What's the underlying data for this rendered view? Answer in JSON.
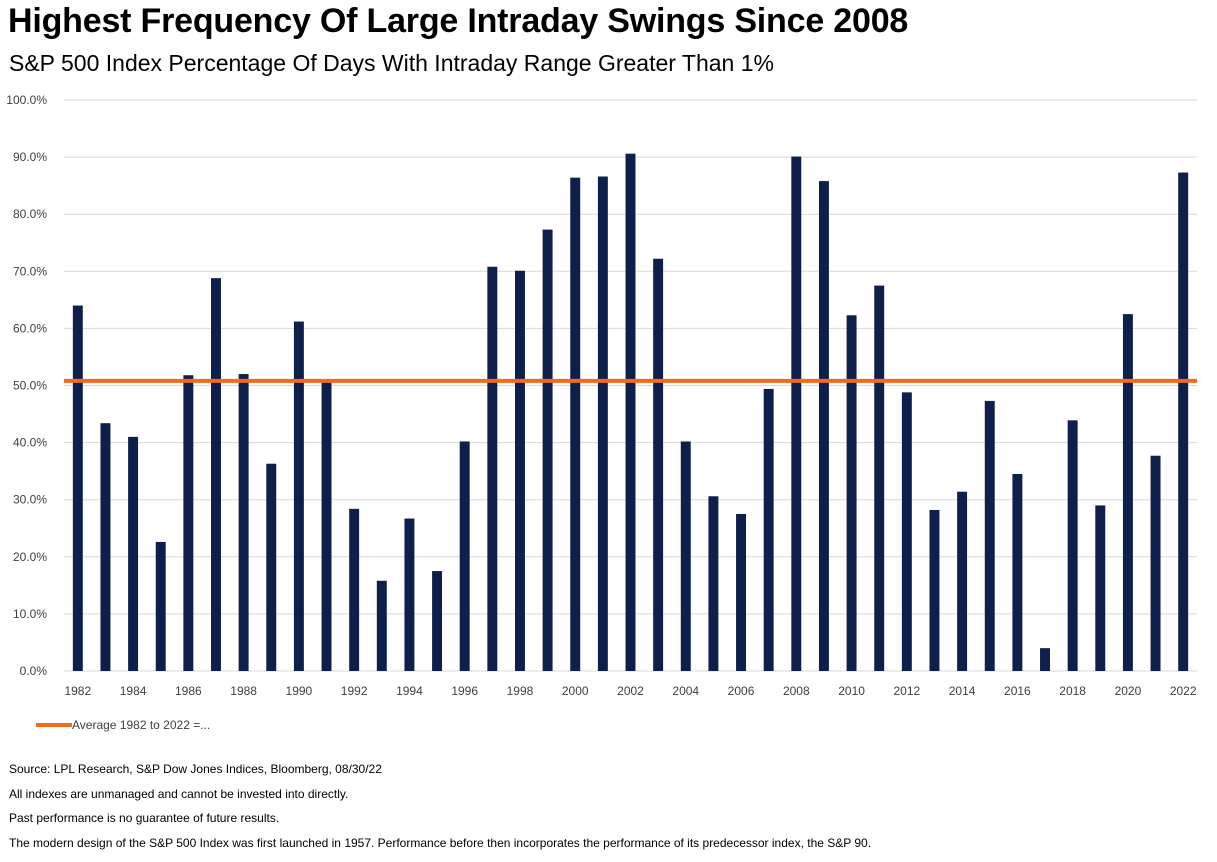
{
  "chart_data": {
    "type": "bar",
    "title": "Highest Frequency Of Large Intraday Swings Since 2008",
    "subtitle": "S&P 500 Index Percentage Of Days With Intraday Range Greater Than 1%",
    "categories": [
      "1982",
      "1983",
      "1984",
      "1985",
      "1986",
      "1987",
      "1988",
      "1989",
      "1990",
      "1991",
      "1992",
      "1993",
      "1994",
      "1995",
      "1996",
      "1997",
      "1998",
      "1999",
      "2000",
      "2001",
      "2002",
      "2003",
      "2004",
      "2005",
      "2006",
      "2007",
      "2008",
      "2009",
      "2010",
      "2011",
      "2012",
      "2013",
      "2014",
      "2015",
      "2016",
      "2017",
      "2018",
      "2019",
      "2020",
      "2021",
      "2022"
    ],
    "values": [
      64.0,
      43.4,
      41.0,
      22.6,
      51.8,
      68.8,
      52.0,
      36.3,
      61.2,
      50.6,
      28.4,
      15.8,
      26.7,
      17.5,
      40.2,
      70.8,
      70.1,
      77.3,
      86.4,
      86.6,
      90.6,
      72.2,
      40.2,
      30.6,
      27.5,
      49.4,
      90.1,
      85.8,
      62.3,
      67.5,
      48.8,
      28.2,
      31.4,
      47.3,
      34.5,
      4.0,
      43.9,
      29.0,
      62.5,
      37.7,
      87.3
    ],
    "x_tick_labels": [
      "1982",
      "1984",
      "1986",
      "1988",
      "1990",
      "1992",
      "1994",
      "1996",
      "1998",
      "2000",
      "2002",
      "2004",
      "2006",
      "2008",
      "2010",
      "2012",
      "2014",
      "2016",
      "2018",
      "2020",
      "2022"
    ],
    "y_tick_labels": [
      "0.0%",
      "10.0%",
      "20.0%",
      "30.0%",
      "40.0%",
      "50.0%",
      "60.0%",
      "70.0%",
      "80.0%",
      "90.0%",
      "100.0%"
    ],
    "ylim": [
      0,
      100
    ],
    "y_tick_step": 10,
    "xlabel": "",
    "ylabel": "",
    "grid": true,
    "average_line": {
      "value": 50.8,
      "label": "Average 1982 to 2022 =..."
    },
    "legend_position": "bottom-left",
    "colors": {
      "bar": "#0d1f4a",
      "average": "#f26b1d",
      "grid": "#d9d9d9",
      "axis_text": "#404040"
    }
  },
  "notes": [
    "Source: LPL Research, S&P Dow Jones Indices, Bloomberg, 08/30/22",
    "All indexes are unmanaged and cannot be invested into directly.",
    "Past performance is no guarantee of future results.",
    "The modern design of the S&P 500 Index was first launched in 1957. Performance before then incorporates the performance of its predecessor index, the S&P 90."
  ]
}
